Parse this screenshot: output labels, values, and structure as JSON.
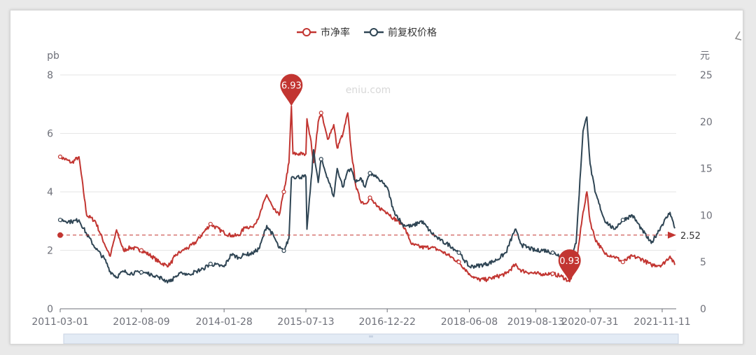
{
  "watermark": "eniu.com",
  "chart_data": {
    "type": "line",
    "legend": {
      "position": "top-center",
      "items": [
        "市净率",
        "前复权价格"
      ]
    },
    "x_ticks": [
      "2011-03-01",
      "2012-08-09",
      "2014-01-28",
      "2015-07-13",
      "2016-12-22",
      "2018-06-08",
      "2019-08-13",
      "2020-07-31",
      "2021-11-11"
    ],
    "y_left": {
      "name": "pb",
      "ticks": [
        "0",
        "2",
        "4",
        "6",
        "8"
      ],
      "range": [
        0,
        8
      ]
    },
    "y_right": {
      "name": "元",
      "ticks": [
        "0",
        "5",
        "10",
        "15",
        "20",
        "25"
      ],
      "range": [
        0,
        25
      ]
    },
    "grid": true,
    "series": [
      {
        "name": "市净率",
        "axis": "left",
        "color": "#c23531",
        "points": [
          [
            "2011-03-01",
            5.2
          ],
          [
            "2011-05-15",
            5.0
          ],
          [
            "2011-07-01",
            5.2
          ],
          [
            "2011-08-20",
            3.2
          ],
          [
            "2011-10-15",
            3.0
          ],
          [
            "2011-12-15",
            2.2
          ],
          [
            "2012-01-20",
            1.8
          ],
          [
            "2012-03-01",
            2.7
          ],
          [
            "2012-04-15",
            2.0
          ],
          [
            "2012-06-01",
            2.1
          ],
          [
            "2012-08-09",
            2.0
          ],
          [
            "2012-10-15",
            1.8
          ],
          [
            "2012-12-01",
            1.6
          ],
          [
            "2013-01-15",
            1.5
          ],
          [
            "2013-02-10",
            1.5
          ],
          [
            "2013-03-15",
            1.8
          ],
          [
            "2013-05-01",
            2.0
          ],
          [
            "2013-06-15",
            2.1
          ],
          [
            "2013-08-01",
            2.3
          ],
          [
            "2013-09-15",
            2.6
          ],
          [
            "2013-11-01",
            2.9
          ],
          [
            "2014-01-28",
            2.6
          ],
          [
            "2014-03-15",
            2.5
          ],
          [
            "2014-05-01",
            2.5
          ],
          [
            "2014-06-15",
            2.8
          ],
          [
            "2014-08-01",
            2.8
          ],
          [
            "2014-09-15",
            3.2
          ],
          [
            "2014-11-01",
            3.9
          ],
          [
            "2014-12-15",
            3.4
          ],
          [
            "2015-01-20",
            3.2
          ],
          [
            "2015-02-20",
            4.0
          ],
          [
            "2015-03-25",
            5.0
          ],
          [
            "2015-04-10",
            6.93
          ],
          [
            "2015-04-20",
            5.3
          ],
          [
            "2015-06-30",
            5.3
          ],
          [
            "2015-07-13",
            5.3
          ],
          [
            "2015-07-20",
            6.5
          ],
          [
            "2015-08-10",
            5.9
          ],
          [
            "2015-09-01",
            5.0
          ],
          [
            "2015-10-01",
            6.4
          ],
          [
            "2015-10-20",
            6.7
          ],
          [
            "2015-12-01",
            5.8
          ],
          [
            "2016-01-10",
            6.3
          ],
          [
            "2016-02-01",
            5.5
          ],
          [
            "2016-03-10",
            6.0
          ],
          [
            "2016-04-10",
            6.7
          ],
          [
            "2016-05-01",
            5.5
          ],
          [
            "2016-06-01",
            4.2
          ],
          [
            "2016-07-01",
            3.7
          ],
          [
            "2016-08-01",
            3.6
          ],
          [
            "2016-09-01",
            3.8
          ],
          [
            "2016-10-15",
            3.5
          ],
          [
            "2016-12-22",
            3.3
          ],
          [
            "2017-02-01",
            3.1
          ],
          [
            "2017-04-01",
            2.9
          ],
          [
            "2017-06-01",
            2.2
          ],
          [
            "2017-08-01",
            2.1
          ],
          [
            "2017-10-01",
            2.1
          ],
          [
            "2017-12-01",
            2.0
          ],
          [
            "2018-02-01",
            1.8
          ],
          [
            "2018-04-01",
            1.6
          ],
          [
            "2018-06-08",
            1.2
          ],
          [
            "2018-08-01",
            1.0
          ],
          [
            "2018-10-01",
            1.0
          ],
          [
            "2018-12-01",
            1.1
          ],
          [
            "2019-02-01",
            1.2
          ],
          [
            "2019-04-01",
            1.5
          ],
          [
            "2019-05-15",
            1.3
          ],
          [
            "2019-08-13",
            1.2
          ],
          [
            "2019-10-01",
            1.2
          ],
          [
            "2019-12-01",
            1.2
          ],
          [
            "2020-02-01",
            1.1
          ],
          [
            "2020-03-20",
            0.93
          ],
          [
            "2020-05-01",
            1.5
          ],
          [
            "2020-06-15",
            3.3
          ],
          [
            "2020-07-10",
            4.0
          ],
          [
            "2020-07-31",
            3.0
          ],
          [
            "2020-09-01",
            2.4
          ],
          [
            "2020-11-01",
            1.9
          ],
          [
            "2021-01-01",
            1.8
          ],
          [
            "2021-03-01",
            1.6
          ],
          [
            "2021-05-01",
            1.8
          ],
          [
            "2021-07-01",
            1.7
          ],
          [
            "2021-09-01",
            1.5
          ],
          [
            "2021-11-11",
            1.5
          ],
          [
            "2022-01-01",
            1.8
          ],
          [
            "2022-02-01",
            1.5
          ]
        ]
      },
      {
        "name": "前复权价格",
        "axis": "right",
        "color": "#2f4554",
        "points": [
          [
            "2011-03-01",
            9.5
          ],
          [
            "2011-05-15",
            9.3
          ],
          [
            "2011-07-01",
            9.5
          ],
          [
            "2011-08-20",
            8.0
          ],
          [
            "2011-10-15",
            6.5
          ],
          [
            "2011-12-15",
            5.3
          ],
          [
            "2012-01-20",
            4.0
          ],
          [
            "2012-03-01",
            3.4
          ],
          [
            "2012-04-15",
            4.0
          ],
          [
            "2012-06-01",
            3.8
          ],
          [
            "2012-08-09",
            3.9
          ],
          [
            "2012-10-15",
            3.7
          ],
          [
            "2012-12-01",
            3.4
          ],
          [
            "2013-01-15",
            3.0
          ],
          [
            "2013-02-10",
            2.9
          ],
          [
            "2013-03-15",
            3.4
          ],
          [
            "2013-05-01",
            3.8
          ],
          [
            "2013-06-15",
            3.7
          ],
          [
            "2013-08-01",
            4.0
          ],
          [
            "2013-09-15",
            4.3
          ],
          [
            "2013-11-01",
            4.8
          ],
          [
            "2014-01-28",
            4.5
          ],
          [
            "2014-03-15",
            5.8
          ],
          [
            "2014-05-01",
            5.5
          ],
          [
            "2014-06-15",
            5.8
          ],
          [
            "2014-08-01",
            5.9
          ],
          [
            "2014-09-15",
            6.5
          ],
          [
            "2014-11-01",
            8.9
          ],
          [
            "2014-12-15",
            7.8
          ],
          [
            "2015-01-20",
            6.5
          ],
          [
            "2015-02-20",
            6.2
          ],
          [
            "2015-03-25",
            7.5
          ],
          [
            "2015-04-10",
            14.0
          ],
          [
            "2015-04-20",
            14.1
          ],
          [
            "2015-06-30",
            14.1
          ],
          [
            "2015-07-13",
            14.1
          ],
          [
            "2015-07-20",
            8.5
          ],
          [
            "2015-08-10",
            12.5
          ],
          [
            "2015-09-01",
            17.0
          ],
          [
            "2015-10-01",
            13.5
          ],
          [
            "2015-10-20",
            16.0
          ],
          [
            "2015-12-01",
            14.0
          ],
          [
            "2016-01-10",
            12.0
          ],
          [
            "2016-02-01",
            15.0
          ],
          [
            "2016-03-10",
            13.0
          ],
          [
            "2016-04-10",
            14.8
          ],
          [
            "2016-05-01",
            15.0
          ],
          [
            "2016-06-01",
            13.5
          ],
          [
            "2016-07-01",
            14.0
          ],
          [
            "2016-08-01",
            13.0
          ],
          [
            "2016-09-01",
            14.5
          ],
          [
            "2016-10-15",
            14.0
          ],
          [
            "2016-12-22",
            13.0
          ],
          [
            "2017-02-01",
            10.5
          ],
          [
            "2017-04-01",
            9.0
          ],
          [
            "2017-06-01",
            8.8
          ],
          [
            "2017-08-01",
            9.4
          ],
          [
            "2017-10-01",
            8.2
          ],
          [
            "2017-12-01",
            7.3
          ],
          [
            "2018-02-01",
            6.8
          ],
          [
            "2018-04-01",
            6.0
          ],
          [
            "2018-06-08",
            4.5
          ],
          [
            "2018-08-01",
            4.6
          ],
          [
            "2018-10-01",
            4.8
          ],
          [
            "2018-12-01",
            5.2
          ],
          [
            "2019-02-01",
            6.0
          ],
          [
            "2019-04-01",
            8.5
          ],
          [
            "2019-05-15",
            6.8
          ],
          [
            "2019-08-13",
            6.2
          ],
          [
            "2019-10-01",
            6.3
          ],
          [
            "2019-12-01",
            6.0
          ],
          [
            "2020-02-01",
            5.6
          ],
          [
            "2020-03-20",
            5.4
          ],
          [
            "2020-05-01",
            7.0
          ],
          [
            "2020-06-15",
            19.0
          ],
          [
            "2020-07-10",
            20.5
          ],
          [
            "2020-07-31",
            15.5
          ],
          [
            "2020-09-01",
            12.5
          ],
          [
            "2020-11-01",
            9.5
          ],
          [
            "2021-01-01",
            8.5
          ],
          [
            "2021-03-01",
            9.5
          ],
          [
            "2021-05-01",
            10.0
          ],
          [
            "2021-07-01",
            8.5
          ],
          [
            "2021-09-01",
            7.0
          ],
          [
            "2021-11-11",
            9.0
          ],
          [
            "2022-01-01",
            10.3
          ],
          [
            "2022-02-01",
            8.6
          ]
        ]
      }
    ],
    "mark_points": [
      {
        "label": "6.93",
        "type": "max",
        "date": "2015-04-10",
        "value": 6.93
      },
      {
        "label": "0.93",
        "type": "min",
        "date": "2020-03-20",
        "value": 0.93
      }
    ],
    "mark_line": {
      "label": "2.52",
      "value": 2.52,
      "style": "dashed"
    }
  }
}
